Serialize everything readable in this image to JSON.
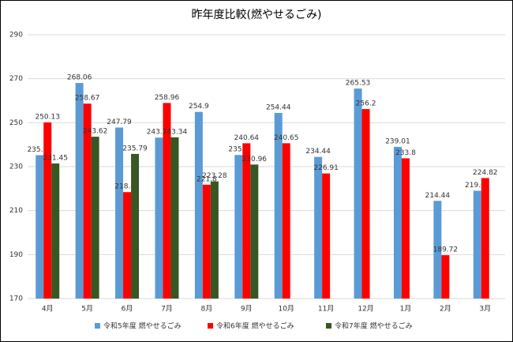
{
  "chart_data": {
    "type": "bar",
    "title": "昨年度比較(燃やせるごみ)",
    "categories": [
      "4月",
      "5月",
      "6月",
      "7月",
      "8月",
      "9月",
      "10月",
      "11月",
      "12月",
      "1月",
      "2月",
      "3月"
    ],
    "series": [
      {
        "name": "令和5年度 燃やせるごみ",
        "color": "#5b9bd5",
        "values": [
          235.23,
          268.06,
          247.79,
          243.21,
          254.9,
          235.3,
          254.44,
          234.44,
          265.53,
          239.01,
          214.44,
          219.05
        ]
      },
      {
        "name": "令和6年度 燃やせるごみ",
        "color": "#ff0000",
        "values": [
          250.13,
          258.67,
          218.42,
          258.96,
          221.8,
          240.64,
          240.65,
          226.91,
          256.2,
          233.8,
          189.72,
          224.82
        ]
      },
      {
        "name": "令和7年度 燃やせるごみ",
        "color": "#385723",
        "values": [
          231.45,
          243.62,
          235.79,
          243.34,
          223.28,
          230.96,
          null,
          null,
          null,
          null,
          null,
          null
        ]
      }
    ],
    "ylim": [
      170,
      290
    ],
    "yticks": [
      170,
      190,
      210,
      230,
      250,
      270,
      290
    ],
    "grid": true
  }
}
